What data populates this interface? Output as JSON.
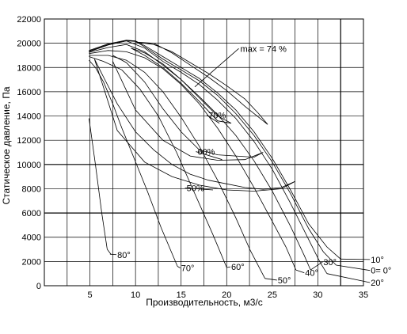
{
  "chart_data": {
    "type": "line",
    "xlabel": "Производительность, м3/с",
    "ylabel": "Статическое давление, Па",
    "xlim": [
      0,
      35
    ],
    "ylim": [
      0,
      22000
    ],
    "x_ticks": [
      5,
      10,
      15,
      20,
      25,
      30,
      35
    ],
    "y_ticks": [
      0,
      2000,
      4000,
      6000,
      8000,
      10000,
      12000,
      14000,
      16000,
      18000,
      20000,
      22000
    ],
    "x_grid": [
      0,
      2.5,
      5,
      7.5,
      10,
      12.5,
      15,
      17.5,
      20,
      22.5,
      25,
      27.5,
      30,
      32.5,
      35
    ],
    "grid": true,
    "emphasized_lines": {
      "x": [
        32.5
      ],
      "y": [
        6000,
        10000
      ]
    },
    "series": [
      {
        "name": "80°",
        "label_at": [
          8,
          2300
        ],
        "leader_to": [
          7.2,
          2600
        ],
        "x": [
          4.9,
          5.6,
          6.3,
          6.9,
          7.3
        ],
        "y": [
          13800,
          10000,
          6000,
          3000,
          2600
        ]
      },
      {
        "name": "70°",
        "label_at": [
          15,
          1200
        ],
        "leader_to": [
          14.6,
          1600
        ],
        "x": [
          4.9,
          5.6,
          6.5,
          7.5,
          8.5,
          9.8,
          11.3,
          12.8,
          14.6
        ],
        "y": [
          18600,
          18000,
          16800,
          15000,
          13000,
          10600,
          7800,
          4800,
          1600
        ]
      },
      {
        "name": "60°",
        "label_at": [
          20.5,
          1300
        ],
        "leader_to": [
          20,
          1500
        ],
        "x": [
          4.9,
          6.5,
          8.5,
          10.5,
          12.5,
          14.5,
          16.5,
          18.5,
          20
        ],
        "y": [
          18900,
          18500,
          17800,
          16200,
          14000,
          11000,
          7600,
          4200,
          1500
        ]
      },
      {
        "name": "50°",
        "label_at": [
          25.6,
          200
        ],
        "leader_to": [
          24.2,
          600
        ],
        "x": [
          4.9,
          7,
          9,
          11,
          13,
          15,
          17,
          19,
          21,
          22.6,
          24.2
        ],
        "y": [
          19000,
          19000,
          18600,
          17600,
          16000,
          13900,
          11500,
          8700,
          5600,
          2900,
          600
        ]
      },
      {
        "name": "40°",
        "label_at": [
          28.6,
          800
        ],
        "leader_to": [
          27.6,
          1300
        ],
        "x": [
          4.9,
          7,
          9,
          11,
          13,
          15,
          17,
          19,
          21,
          23,
          25,
          26.5,
          27.6
        ],
        "y": [
          19150,
          19400,
          19300,
          18800,
          17900,
          16600,
          15000,
          13000,
          10700,
          8100,
          5300,
          3200,
          1300
        ]
      },
      {
        "name": "30°",
        "label_at": [
          30.6,
          1700
        ],
        "leader_to": [
          29.2,
          1300
        ],
        "x": [
          4.9,
          7,
          9,
          11,
          13,
          15,
          17,
          19,
          21,
          23,
          25,
          27,
          28.5,
          29.2
        ],
        "y": [
          19250,
          19650,
          19900,
          19300,
          18200,
          17000,
          15600,
          14100,
          12400,
          10300,
          7800,
          4900,
          2500,
          1300
        ]
      },
      {
        "name": "20°",
        "label_at": [
          35.8,
          0
        ],
        "leader_to": [
          31,
          1000
        ],
        "x": [
          4.9,
          7,
          9,
          11,
          13,
          15,
          17,
          19,
          21,
          23,
          25,
          27,
          29,
          30.2,
          31
        ],
        "y": [
          19300,
          19850,
          20200,
          19600,
          18500,
          17600,
          16600,
          15300,
          13800,
          11900,
          9600,
          6800,
          3800,
          2000,
          1000
        ]
      },
      {
        "name": "0= 0°",
        "label_at": [
          35.8,
          1000
        ],
        "leader_to": [
          32,
          1700
        ],
        "x": [
          4.9,
          7,
          9,
          10,
          11,
          13,
          15,
          17,
          19,
          21,
          23,
          25,
          27,
          29,
          30.6,
          32
        ],
        "y": [
          19350,
          19900,
          20200,
          20150,
          19700,
          18700,
          17800,
          16900,
          15700,
          14200,
          12400,
          10200,
          7600,
          4700,
          2800,
          1700
        ]
      },
      {
        "name": "10°",
        "label_at": [
          35.8,
          1900
        ],
        "leader_to": [
          32.5,
          2200
        ],
        "x": [
          4.9,
          7,
          9,
          10,
          11,
          13,
          15,
          17,
          19,
          21,
          23,
          25,
          27,
          29,
          31,
          32.5
        ],
        "y": [
          19400,
          19950,
          20250,
          20200,
          19800,
          18900,
          18000,
          17100,
          15900,
          14500,
          12700,
          10500,
          7900,
          5100,
          3200,
          2200
        ]
      }
    ],
    "efficiency_contours": [
      {
        "label": "max = 74 %",
        "label_at": [
          21.5,
          19300
        ],
        "leader_to": [
          16.5,
          16400
        ],
        "x": [
          10,
          12,
          14,
          16,
          18,
          20,
          22,
          23.5,
          24.5,
          23.5,
          22,
          20,
          18,
          16,
          14,
          12,
          10
        ],
        "y": [
          20100,
          20000,
          19200,
          18200,
          17200,
          16100,
          14800,
          13900,
          13300,
          14200,
          15400,
          16500,
          17500,
          18400,
          19300,
          19900,
          20100
        ]
      },
      {
        "label": "70%",
        "label_at": [
          18,
          13800
        ],
        "leader_to": [
          19.2,
          13400
        ],
        "x": [
          9.5,
          11,
          13,
          15,
          17,
          19,
          20.5,
          19,
          17,
          15,
          13,
          11,
          9.5
        ],
        "y": [
          19600,
          19200,
          18300,
          17000,
          15500,
          14000,
          13400,
          13600,
          15200,
          16700,
          18000,
          19000,
          19600
        ]
      },
      {
        "label": "60%",
        "label_at": [
          16.8,
          10800
        ],
        "leader_to": [
          19.5,
          10400
        ],
        "x": [
          7.5,
          9,
          11,
          13,
          15,
          17,
          19,
          21,
          23,
          24,
          22,
          19,
          16,
          13,
          10,
          7.5
        ],
        "y": [
          19000,
          18400,
          16800,
          14600,
          12700,
          11200,
          10800,
          10700,
          10600,
          11000,
          10400,
          10350,
          10700,
          12000,
          14500,
          18500
        ]
      },
      {
        "label": "50%",
        "label_at": [
          15.6,
          7800
        ],
        "leader_to": [
          18.5,
          7900
        ],
        "x": [
          5.5,
          6.5,
          8,
          10,
          12,
          14,
          16,
          18,
          20,
          22,
          24,
          26,
          27.5,
          26,
          23,
          20,
          17,
          14,
          11,
          8,
          5.5
        ],
        "y": [
          18700,
          17200,
          15000,
          12700,
          11200,
          10000,
          9200,
          8700,
          8400,
          8100,
          7950,
          8100,
          8600,
          8000,
          7800,
          7900,
          8300,
          9000,
          10200,
          12800,
          18700
        ]
      }
    ]
  }
}
